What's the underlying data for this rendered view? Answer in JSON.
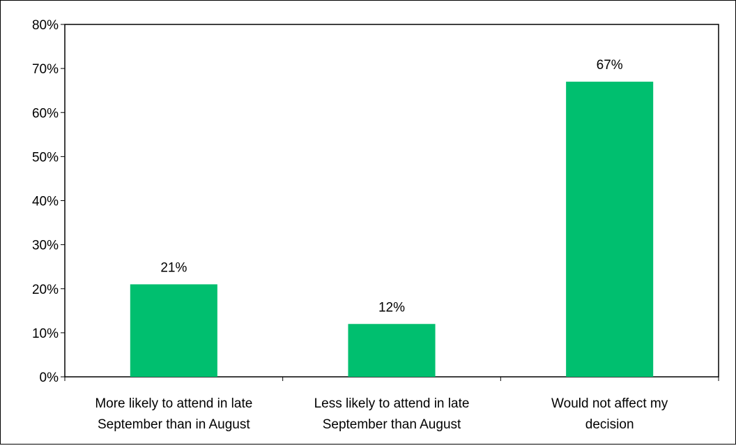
{
  "chart_data": {
    "type": "bar",
    "title": "",
    "xlabel": "",
    "ylabel": "",
    "categories": [
      [
        "More likely to attend in late",
        "September than in August"
      ],
      [
        "Less likely to attend in late",
        "September than August"
      ],
      [
        "Would not affect my",
        "decision"
      ]
    ],
    "values": [
      21,
      12,
      67
    ],
    "data_labels": [
      "21%",
      "12%",
      "67%"
    ],
    "ylim": [
      0,
      80
    ],
    "yticks": [
      0,
      10,
      20,
      30,
      40,
      50,
      60,
      70,
      80
    ],
    "ytick_labels": [
      "0%",
      "10%",
      "20%",
      "30%",
      "40%",
      "50%",
      "60%",
      "70%",
      "80%"
    ],
    "bar_color": "#00BF6F",
    "grid": false,
    "legend": "none"
  }
}
